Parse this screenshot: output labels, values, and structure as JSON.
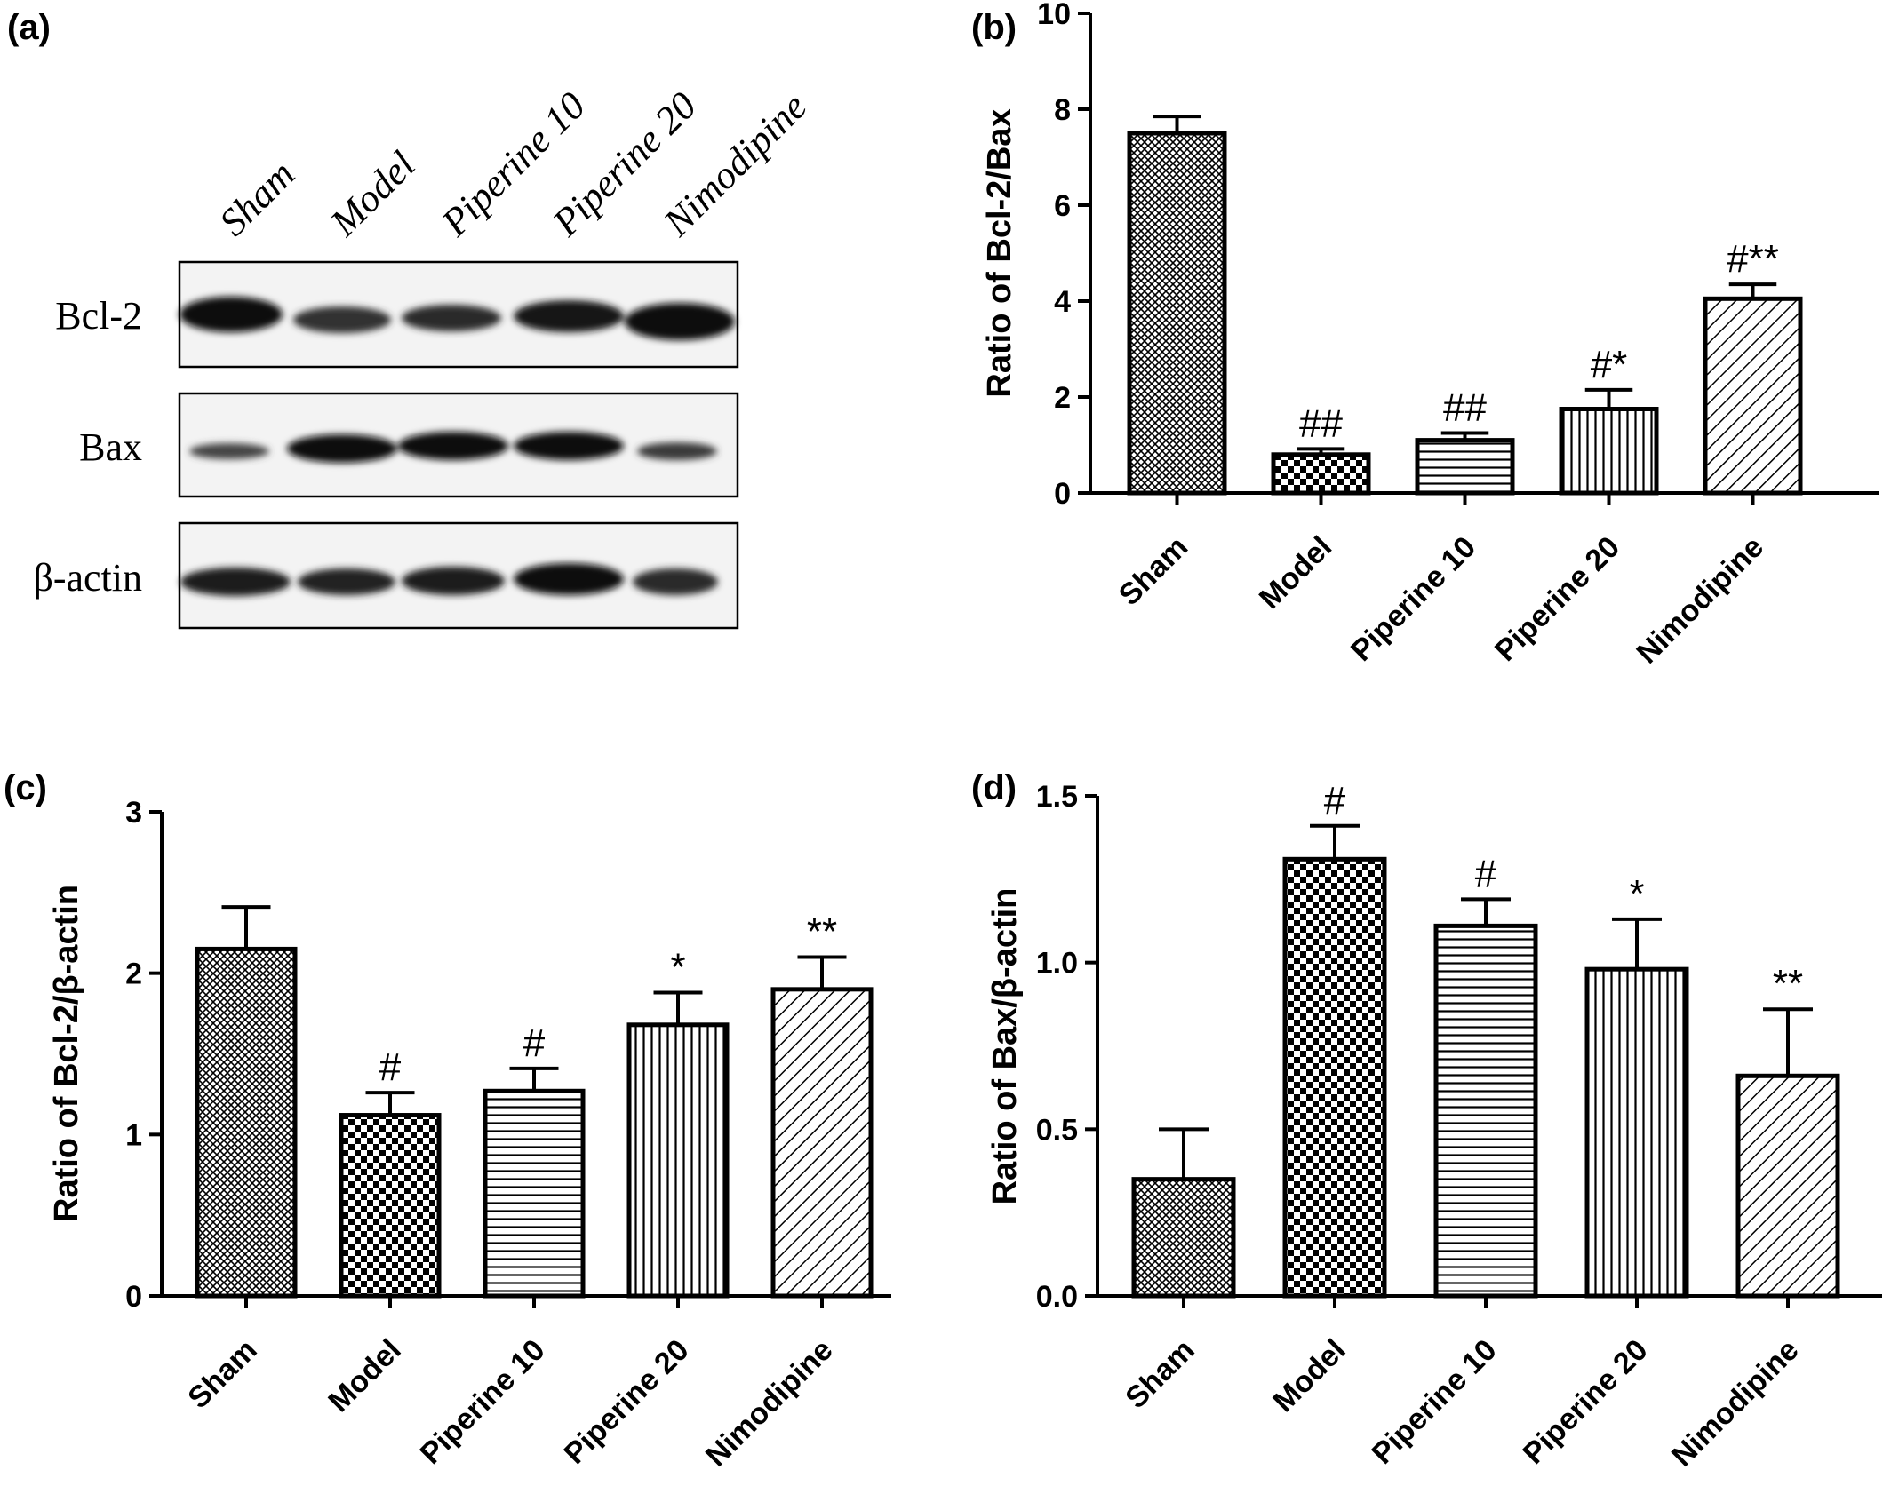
{
  "panel_a": {
    "letter": "(a)",
    "lane_labels": [
      "Sham",
      "Model",
      "Piperine 10",
      "Piperine 20",
      "Nimodipine"
    ],
    "row_labels": [
      "Bcl-2",
      "Bax",
      "β-actin"
    ]
  },
  "chart_data": [
    {
      "id": "b",
      "letter": "(b)",
      "type": "bar",
      "categories": [
        "Sham",
        "Model",
        "Piperine 10",
        "Piperine 20",
        "Nimodipine"
      ],
      "values": [
        7.5,
        0.8,
        1.1,
        1.75,
        4.05
      ],
      "errors": [
        0.35,
        0.12,
        0.15,
        0.4,
        0.3
      ],
      "annotations": [
        "",
        "##",
        "##",
        "#*",
        "#**"
      ],
      "ylabel": "Ratio of Bcl-2/Bax",
      "ylim": [
        0,
        10
      ],
      "yticks": [
        "0",
        "2",
        "4",
        "6",
        "8",
        "10"
      ],
      "grid": false
    },
    {
      "id": "c",
      "letter": "(c)",
      "type": "bar",
      "categories": [
        "Sham",
        "Model",
        "Piperine 10",
        "Piperine 20",
        "Nimodipine"
      ],
      "values": [
        2.15,
        1.12,
        1.27,
        1.68,
        1.9
      ],
      "errors": [
        0.26,
        0.14,
        0.14,
        0.2,
        0.2
      ],
      "annotations": [
        "",
        "#",
        "#",
        "*",
        "**"
      ],
      "ylabel": "Ratio of Bcl-2/β-actin",
      "ylim": [
        0,
        3
      ],
      "yticks": [
        "0",
        "1",
        "2",
        "3"
      ],
      "grid": false
    },
    {
      "id": "d",
      "letter": "(d)",
      "type": "bar",
      "categories": [
        "Sham",
        "Model",
        "Piperine 10",
        "Piperine 20",
        "Nimodipine"
      ],
      "values": [
        0.35,
        1.31,
        1.11,
        0.98,
        0.66
      ],
      "errors": [
        0.15,
        0.1,
        0.08,
        0.15,
        0.2
      ],
      "annotations": [
        "",
        "#",
        "#",
        "*",
        "**"
      ],
      "ylabel": "Ratio of Bax/β-actin",
      "ylim": [
        0,
        1.5
      ],
      "yticks": [
        "0.0",
        "0.5",
        "1.0",
        "1.5"
      ],
      "grid": false
    }
  ]
}
